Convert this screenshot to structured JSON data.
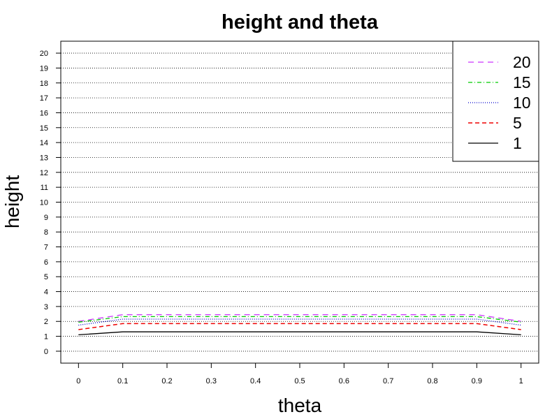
{
  "chart_data": {
    "type": "line",
    "title": "height and theta",
    "xlabel": "theta",
    "ylabel": "height",
    "x": [
      0,
      0.1,
      0.2,
      0.3,
      0.4,
      0.5,
      0.6,
      0.7,
      0.8,
      0.9,
      1
    ],
    "x_ticks": [
      "0",
      "0.1",
      "0.2",
      "0.3",
      "0.4",
      "0.5",
      "0.6",
      "0.7",
      "0.8",
      "0.9",
      "1"
    ],
    "y_ticks": [
      "0",
      "1",
      "2",
      "3",
      "4",
      "5",
      "6",
      "7",
      "8",
      "9",
      "10",
      "11",
      "12",
      "13",
      "14",
      "15",
      "16",
      "17",
      "18",
      "19",
      "20"
    ],
    "xlim": [
      -0.04,
      1.04
    ],
    "ylim": [
      -0.8,
      20.8
    ],
    "grid": "horizontal dotted",
    "legend_position": "top-right",
    "series": [
      {
        "name": "20",
        "color": "#cc33ff",
        "dash": "8,6",
        "width": 1.3,
        "values": [
          2.0,
          2.45,
          2.45,
          2.45,
          2.45,
          2.45,
          2.45,
          2.45,
          2.45,
          2.45,
          2.0
        ]
      },
      {
        "name": "15",
        "color": "#00cc00",
        "dash": "6,3,1,3",
        "width": 1.3,
        "values": [
          1.95,
          2.32,
          2.32,
          2.32,
          2.32,
          2.32,
          2.32,
          2.32,
          2.32,
          2.32,
          1.95
        ]
      },
      {
        "name": "10",
        "color": "#0000cc",
        "dash": "1,2",
        "width": 1.3,
        "values": [
          1.75,
          2.15,
          2.15,
          2.15,
          2.15,
          2.15,
          2.15,
          2.15,
          2.15,
          2.15,
          1.75
        ]
      },
      {
        "name": "5",
        "color": "#ee0000",
        "dash": "6,4",
        "width": 1.5,
        "values": [
          1.45,
          1.85,
          1.85,
          1.85,
          1.85,
          1.85,
          1.85,
          1.85,
          1.85,
          1.85,
          1.45
        ]
      },
      {
        "name": "1",
        "color": "#000000",
        "dash": "",
        "width": 1.3,
        "values": [
          1.1,
          1.3,
          1.3,
          1.3,
          1.3,
          1.3,
          1.3,
          1.3,
          1.3,
          1.3,
          1.1
        ]
      }
    ]
  }
}
